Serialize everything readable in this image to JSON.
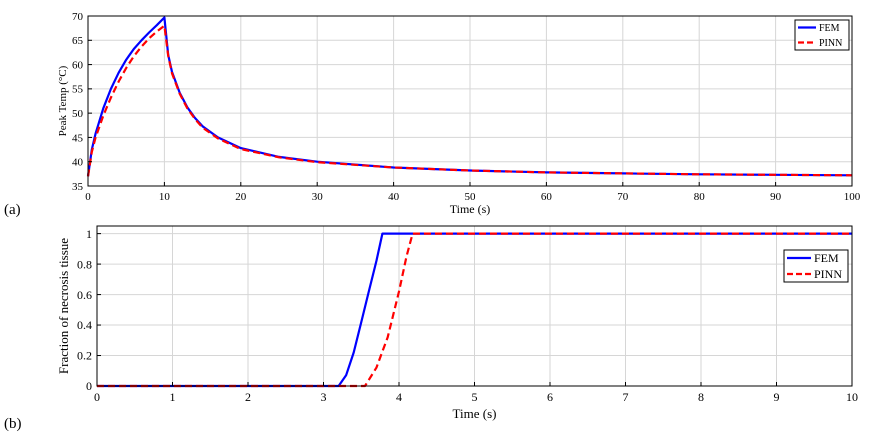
{
  "chart_data": [
    {
      "type": "line",
      "panel_label": "(a)",
      "xlabel": "Time (s)",
      "ylabel": "Peak Temp (°C)",
      "xlim": [
        0,
        100
      ],
      "ylim": [
        35,
        70
      ],
      "xticks": [
        0,
        10,
        20,
        30,
        40,
        50,
        60,
        70,
        80,
        90,
        100
      ],
      "yticks": [
        35,
        40,
        45,
        50,
        55,
        60,
        65,
        70
      ],
      "grid": true,
      "legend_position": "top-right",
      "series": [
        {
          "name": "FEM",
          "color": "#0000ff",
          "style": "solid",
          "x": [
            0,
            0.5,
            1,
            2,
            3,
            4,
            5,
            6,
            7,
            8,
            9,
            10,
            10.5,
            11,
            12,
            13,
            14,
            15,
            17,
            20,
            25,
            30,
            40,
            50,
            60,
            70,
            80,
            90,
            100
          ],
          "y": [
            37,
            42.5,
            45.8,
            51,
            55,
            58.3,
            61,
            63.2,
            65,
            66.6,
            68.1,
            69.7,
            62,
            58.5,
            54.2,
            51.2,
            49,
            47.3,
            45,
            42.8,
            41,
            40,
            38.8,
            38.2,
            37.8,
            37.6,
            37.4,
            37.3,
            37.2
          ]
        },
        {
          "name": "PINN",
          "color": "#ff0000",
          "style": "dashed",
          "x": [
            0,
            0.5,
            1,
            2,
            3,
            4,
            5,
            6,
            7,
            8,
            9,
            10,
            10.5,
            11,
            12,
            13,
            14,
            15,
            17,
            20,
            25,
            30,
            40,
            50,
            60,
            70,
            80,
            90,
            100
          ],
          "y": [
            37,
            42,
            45,
            49.5,
            53.2,
            56.5,
            59.3,
            61.7,
            63.7,
            65.4,
            66.8,
            68,
            61.8,
            58.2,
            54,
            51,
            48.8,
            47,
            44.8,
            42.6,
            40.9,
            39.9,
            38.8,
            38.2,
            37.8,
            37.6,
            37.4,
            37.3,
            37.2
          ]
        }
      ]
    },
    {
      "type": "line",
      "panel_label": "(b)",
      "xlabel": "Time (s)",
      "ylabel": "Fraction of necrosis tissue",
      "xlim": [
        0,
        10
      ],
      "ylim": [
        0,
        1.05
      ],
      "xticks": [
        0,
        1,
        2,
        3,
        4,
        5,
        6,
        7,
        8,
        9,
        10
      ],
      "yticks": [
        0,
        0.2,
        0.4,
        0.6,
        0.8,
        1
      ],
      "ytick_labels": [
        "0",
        "0.2",
        "0.4",
        "0.6",
        "0.8",
        "1"
      ],
      "grid": true,
      "legend_position": "top-right",
      "series": [
        {
          "name": "FEM",
          "color": "#0000ff",
          "style": "solid",
          "x": [
            0,
            3.2,
            3.3,
            3.4,
            3.5,
            3.6,
            3.7,
            3.78,
            10
          ],
          "y": [
            0,
            0,
            0.07,
            0.22,
            0.42,
            0.62,
            0.82,
            1,
            1
          ]
        },
        {
          "name": "PINN",
          "color": "#ff0000",
          "style": "dashed",
          "x": [
            0,
            3.55,
            3.7,
            3.85,
            4.0,
            4.1,
            4.18,
            10
          ],
          "y": [
            0,
            0,
            0.12,
            0.32,
            0.62,
            0.85,
            1,
            1
          ]
        }
      ]
    }
  ]
}
